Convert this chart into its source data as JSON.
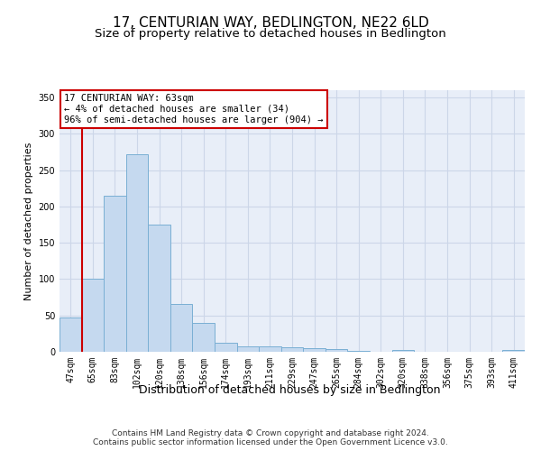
{
  "title": "17, CENTURIAN WAY, BEDLINGTON, NE22 6LD",
  "subtitle": "Size of property relative to detached houses in Bedlington",
  "xlabel": "Distribution of detached houses by size in Bedlington",
  "ylabel": "Number of detached properties",
  "categories": [
    "47sqm",
    "65sqm",
    "83sqm",
    "102sqm",
    "120sqm",
    "138sqm",
    "156sqm",
    "174sqm",
    "193sqm",
    "211sqm",
    "229sqm",
    "247sqm",
    "265sqm",
    "284sqm",
    "302sqm",
    "320sqm",
    "338sqm",
    "356sqm",
    "375sqm",
    "393sqm",
    "411sqm"
  ],
  "values": [
    47,
    101,
    215,
    272,
    175,
    66,
    40,
    13,
    8,
    8,
    6,
    5,
    4,
    1,
    0.5,
    3,
    0,
    0,
    0,
    0,
    2
  ],
  "bar_color": "#c5d9ef",
  "bar_edge_color": "#7aafd4",
  "grid_color": "#ccd6e8",
  "background_color": "#e8eef8",
  "annotation_box_text": "17 CENTURIAN WAY: 63sqm\n← 4% of detached houses are smaller (34)\n96% of semi-detached houses are larger (904) →",
  "annotation_box_color": "#ffffff",
  "annotation_box_edge_color": "#cc0000",
  "marker_line_color": "#cc0000",
  "ylim": [
    0,
    360
  ],
  "yticks": [
    0,
    50,
    100,
    150,
    200,
    250,
    300,
    350
  ],
  "title_fontsize": 11,
  "subtitle_fontsize": 9.5,
  "xlabel_fontsize": 9,
  "ylabel_fontsize": 8,
  "tick_fontsize": 7,
  "annotation_fontsize": 7.5,
  "footer_text": "Contains HM Land Registry data © Crown copyright and database right 2024.\nContains public sector information licensed under the Open Government Licence v3.0.",
  "footer_fontsize": 6.5
}
